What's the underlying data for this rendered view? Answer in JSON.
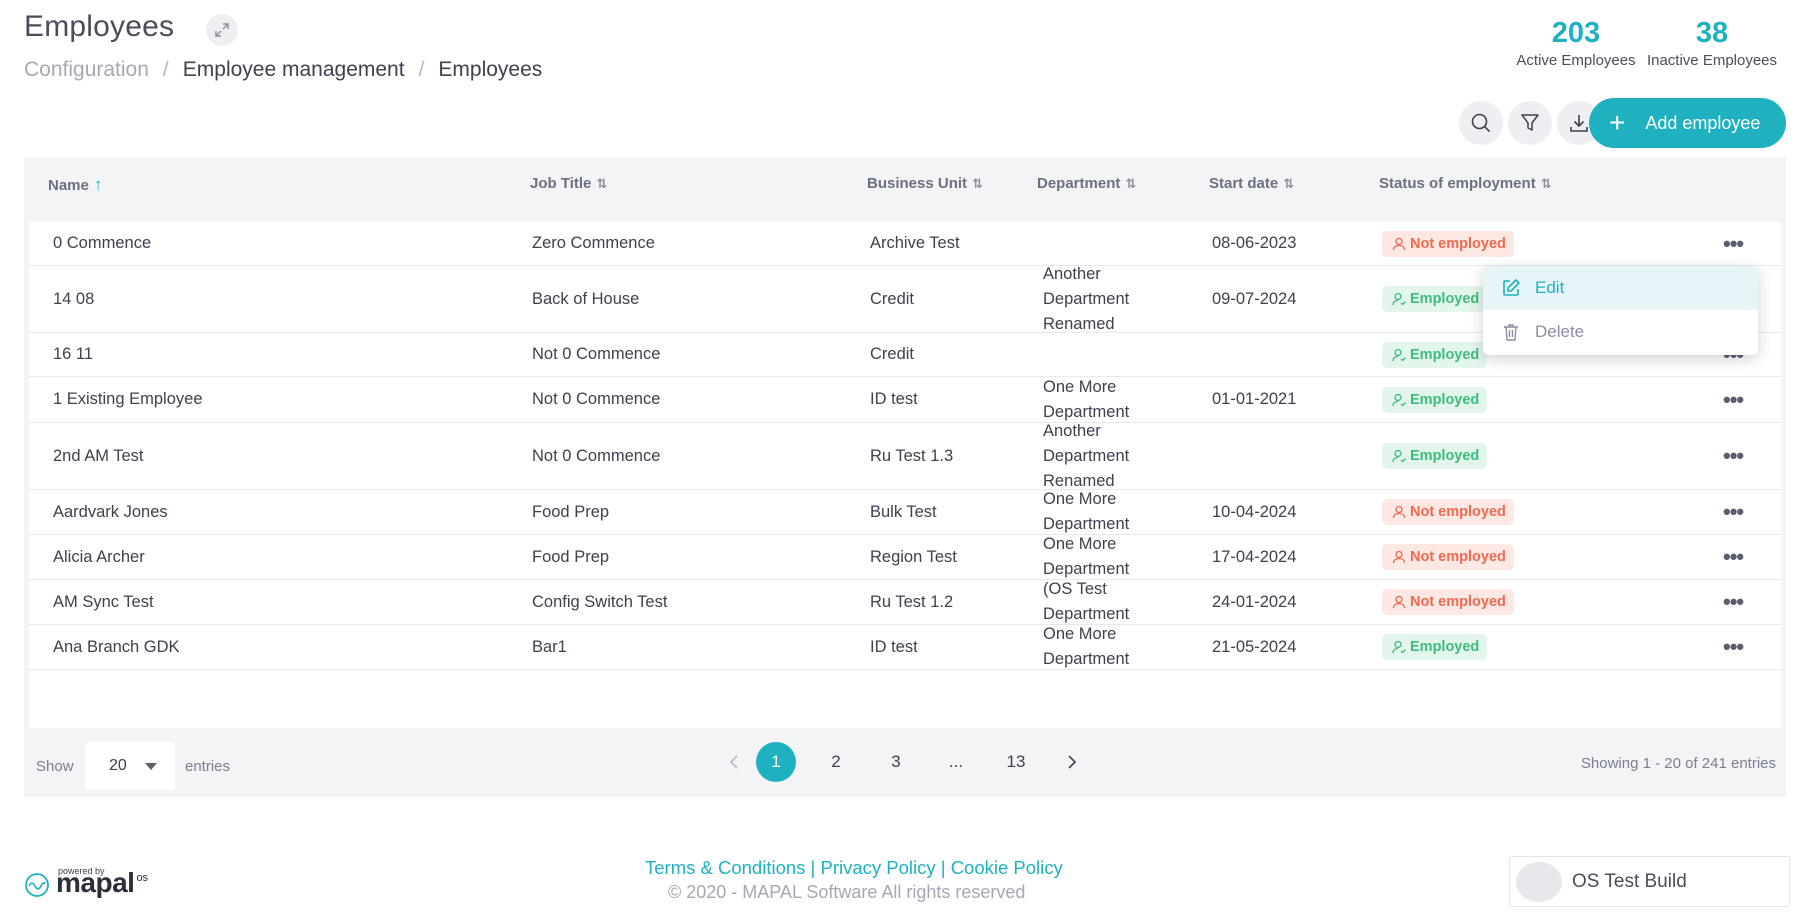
{
  "header": {
    "title": "Employees",
    "breadcrumb": [
      "Configuration",
      "Employee management",
      "Employees"
    ]
  },
  "stats": {
    "active_count": "203",
    "active_label": "Active Employees",
    "inactive_count": "38",
    "inactive_label": "Inactive Employees"
  },
  "toolbar": {
    "add_label": "Add employee",
    "icons": [
      "search-icon",
      "filter-icon",
      "download-icon"
    ]
  },
  "table": {
    "columns": [
      "Name",
      "Job Title",
      "Business Unit",
      "Department",
      "Start date",
      "Status of employment"
    ],
    "sorted_column": "Name",
    "rows": [
      {
        "name": "0 Commence",
        "job": "Zero Commence",
        "bu": "Archive Test",
        "dept": "",
        "date": "08-06-2023",
        "status": "Not employed"
      },
      {
        "name": "14 08",
        "job": "Back of House",
        "bu": "Credit",
        "dept": "Another Department Renamed",
        "date": "09-07-2024",
        "status": "Employed"
      },
      {
        "name": "16 11",
        "job": "Not 0 Commence",
        "bu": "Credit",
        "dept": "",
        "date": "",
        "status": "Employed"
      },
      {
        "name": "1 Existing Employee",
        "job": "Not 0 Commence",
        "bu": "ID test",
        "dept": "One More Department",
        "date": "01-01-2021",
        "status": "Employed"
      },
      {
        "name": "2nd AM Test",
        "job": "Not 0 Commence",
        "bu": "Ru Test 1.3",
        "dept": "Another Department Renamed",
        "date": "",
        "status": "Employed"
      },
      {
        "name": "Aardvark Jones",
        "job": "Food Prep",
        "bu": "Bulk Test",
        "dept": "One More Department",
        "date": "10-04-2024",
        "status": "Not employed"
      },
      {
        "name": "Alicia Archer",
        "job": "Food Prep",
        "bu": "Region Test",
        "dept": "One More Department",
        "date": "17-04-2024",
        "status": "Not employed"
      },
      {
        "name": "AM Sync Test",
        "job": "Config Switch Test",
        "bu": "Ru Test 1.2",
        "dept": "(OS Test Department",
        "date": "24-01-2024",
        "status": "Not employed"
      },
      {
        "name": "Ana Branch GDK",
        "job": "Bar1",
        "bu": "ID test",
        "dept": "One More Department",
        "date": "21-05-2024",
        "status": "Employed"
      }
    ]
  },
  "context_menu": {
    "edit_label": "Edit",
    "delete_label": "Delete"
  },
  "pagination": {
    "show_label": "Show",
    "page_size": "20",
    "entries_label": "entries",
    "pages": [
      "1",
      "2",
      "3",
      "...",
      "13"
    ],
    "current_page": "1",
    "showing_text": "Showing 1 - 20 of 241 entries"
  },
  "footer": {
    "links_text": "Terms & Conditions | Privacy Policy | Cookie Policy",
    "copyright": "© 2020 - MAPAL Software All rights reserved",
    "powered_by": "powered by",
    "brand": "mapal",
    "brand_suffix": "os",
    "build_label": "OS Test Build"
  },
  "colors": {
    "accent": "#1fb1bf",
    "employed": "#3dbd7d",
    "not_employed": "#ef6a50"
  }
}
